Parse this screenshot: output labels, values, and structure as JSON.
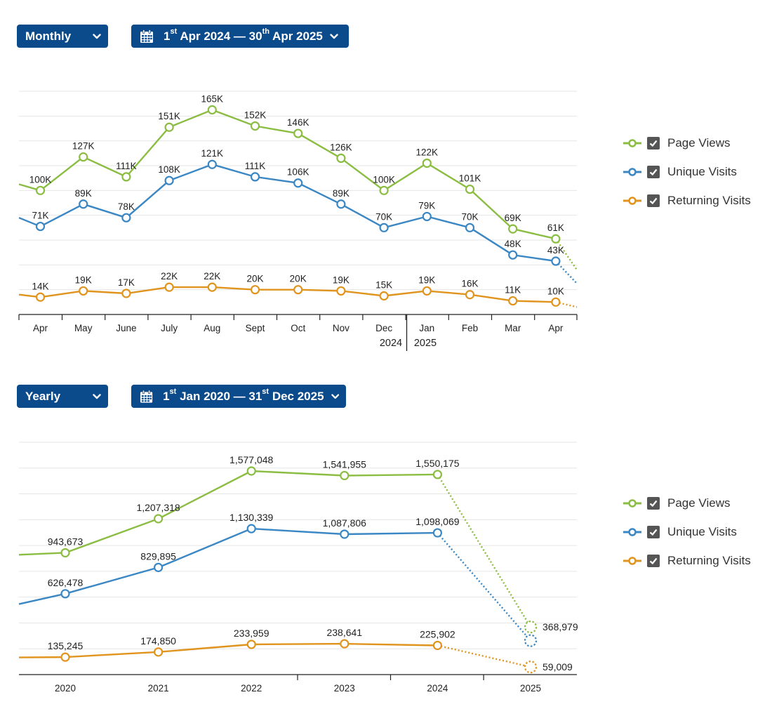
{
  "colors": {
    "page_views": "#8bbd43",
    "unique_visits": "#3a87c4",
    "returning_visits": "#e0941e",
    "button_bg": "#0b4a8b"
  },
  "monthly": {
    "period_select": "Monthly",
    "date_range": {
      "start_day": "1",
      "start_sup": "st",
      "start_rest": "Apr 2024",
      "sep": "—",
      "end_day": "30",
      "end_sup": "th",
      "end_rest": "Apr 2025"
    },
    "legend": [
      {
        "label": "Page Views",
        "checked": true
      },
      {
        "label": "Unique Visits",
        "checked": true
      },
      {
        "label": "Returning Visits",
        "checked": true
      }
    ]
  },
  "yearly": {
    "period_select": "Yearly",
    "date_range": {
      "start_day": "1",
      "start_sup": "st",
      "start_rest": "Jan 2020",
      "sep": "—",
      "end_day": "31",
      "end_sup": "st",
      "end_rest": "Dec 2025"
    },
    "legend": [
      {
        "label": "Page Views",
        "checked": true
      },
      {
        "label": "Unique Visits",
        "checked": true
      },
      {
        "label": "Returning Visits",
        "checked": true
      }
    ]
  },
  "chart_data": [
    {
      "type": "line",
      "categories": [
        "Apr",
        "May",
        "June",
        "July",
        "Aug",
        "Sept",
        "Oct",
        "Nov",
        "Dec",
        "Jan",
        "Feb",
        "Mar",
        "Apr"
      ],
      "year_labels": [
        "2024",
        "2025"
      ],
      "ylim": [
        0,
        180000
      ],
      "series": [
        {
          "name": "Page Views",
          "values": [
            100000,
            127000,
            111000,
            151000,
            165000,
            152000,
            146000,
            126000,
            100000,
            122000,
            101000,
            69000,
            61000
          ],
          "labels": [
            "100K",
            "127K",
            "111K",
            "151K",
            "165K",
            "152K",
            "146K",
            "126K",
            "100K",
            "122K",
            "101K",
            "69K",
            "61K"
          ]
        },
        {
          "name": "Unique Visits",
          "values": [
            71000,
            89000,
            78000,
            108000,
            121000,
            111000,
            106000,
            89000,
            70000,
            79000,
            70000,
            48000,
            43000
          ],
          "labels": [
            "71K",
            "89K",
            "78K",
            "108K",
            "121K",
            "111K",
            "106K",
            "89K",
            "70K",
            "79K",
            "70K",
            "48K",
            "43K"
          ]
        },
        {
          "name": "Returning Visits",
          "values": [
            14000,
            19000,
            17000,
            22000,
            22000,
            20000,
            20000,
            19000,
            15000,
            19000,
            16000,
            11000,
            10000
          ],
          "labels": [
            "14K",
            "19K",
            "17K",
            "22K",
            "22K",
            "20K",
            "20K",
            "19K",
            "15K",
            "19K",
            "16K",
            "11K",
            "10K"
          ]
        }
      ]
    },
    {
      "type": "line",
      "categories": [
        "2020",
        "2021",
        "2022",
        "2023",
        "2024",
        "2025"
      ],
      "ylim": [
        0,
        1800000
      ],
      "series": [
        {
          "name": "Page Views",
          "values": [
            943673,
            1207318,
            1577048,
            1541955,
            1550175,
            368979
          ],
          "labels": [
            "943,673",
            "1,207,318",
            "1,577,048",
            "1,541,955",
            "1,550,175",
            "368,979"
          ]
        },
        {
          "name": "Unique Visits",
          "values": [
            626478,
            829895,
            1130339,
            1087806,
            1098069,
            263000
          ],
          "labels": [
            "626,478",
            "829,895",
            "1,130,339",
            "1,087,806",
            "1,098,069",
            ""
          ]
        },
        {
          "name": "Returning Visits",
          "values": [
            135245,
            174850,
            233959,
            238641,
            225902,
            59009
          ],
          "labels": [
            "135,245",
            "174,850",
            "233,959",
            "238,641",
            "225,902",
            "59,009"
          ]
        }
      ]
    }
  ]
}
